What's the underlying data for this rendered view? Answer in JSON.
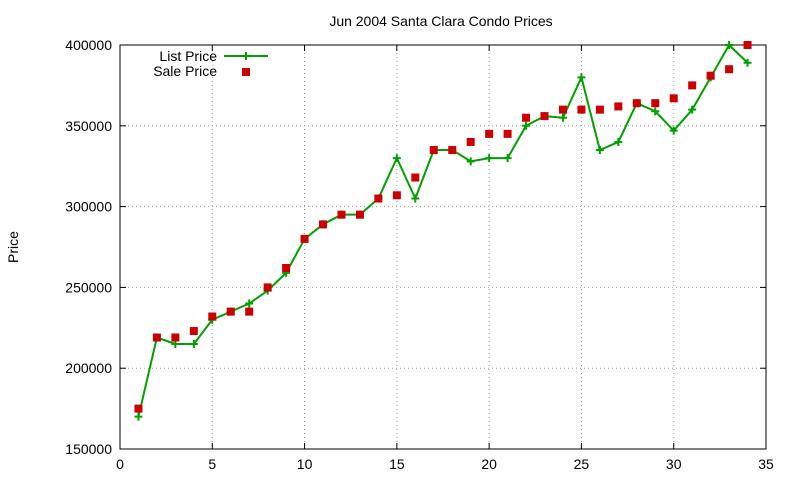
{
  "chart_data": {
    "type": "line",
    "title": "Jun 2004 Santa Clara Condo Prices",
    "xlabel": "",
    "ylabel": "Price",
    "xlim": [
      0,
      35
    ],
    "ylim": [
      150000,
      400000
    ],
    "x_ticks": [
      0,
      5,
      10,
      15,
      20,
      25,
      30,
      35
    ],
    "y_ticks": [
      150000,
      200000,
      250000,
      300000,
      350000,
      400000
    ],
    "grid": true,
    "legend_position": "top-left",
    "series": [
      {
        "name": "List Price",
        "style": "lines+points",
        "marker": "plus",
        "color": "#00a000",
        "x": [
          1,
          2,
          3,
          4,
          5,
          6,
          7,
          8,
          9,
          10,
          11,
          12,
          13,
          14,
          15,
          16,
          17,
          18,
          19,
          20,
          21,
          22,
          23,
          24,
          25,
          26,
          27,
          28,
          29,
          30,
          31,
          32,
          33,
          34
        ],
        "y": [
          170000,
          219000,
          215000,
          215000,
          230000,
          235000,
          240000,
          248000,
          259000,
          280000,
          289000,
          295000,
          295000,
          305000,
          330000,
          305000,
          335000,
          335000,
          328000,
          330000,
          330000,
          350000,
          356000,
          355000,
          380000,
          335000,
          340000,
          364000,
          359000,
          347000,
          360000,
          380000,
          400000,
          389000
        ]
      },
      {
        "name": "Sale Price",
        "style": "points",
        "marker": "square",
        "color": "#cc0000",
        "x": [
          1,
          2,
          3,
          4,
          5,
          6,
          7,
          8,
          9,
          10,
          11,
          12,
          13,
          14,
          15,
          16,
          17,
          18,
          19,
          20,
          21,
          22,
          23,
          24,
          25,
          26,
          27,
          28,
          29,
          30,
          31,
          32,
          33,
          34
        ],
        "y": [
          175000,
          219000,
          219000,
          223000,
          232000,
          235000,
          235000,
          250000,
          262000,
          280000,
          289000,
          295000,
          295000,
          305000,
          307000,
          318000,
          335000,
          335000,
          340000,
          345000,
          345000,
          355000,
          356000,
          360000,
          360000,
          360000,
          362000,
          364000,
          364000,
          367000,
          375000,
          381000,
          385000,
          400000
        ]
      }
    ]
  }
}
